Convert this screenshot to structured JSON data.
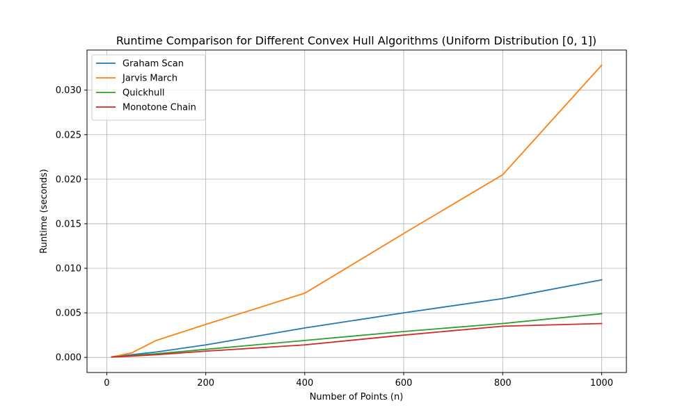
{
  "chart_data": {
    "type": "line",
    "title": "Runtime Comparison for Different Convex Hull Algorithms (Uniform Distribution [0, 1])",
    "xlabel": "Number of Points (n)",
    "ylabel": "Runtime (seconds)",
    "xlim": [
      -40,
      1050
    ],
    "ylim": [
      -0.0017,
      0.0345
    ],
    "x_ticks": [
      0,
      200,
      400,
      600,
      800,
      1000
    ],
    "x_tick_labels": [
      "0",
      "200",
      "400",
      "600",
      "800",
      "1000"
    ],
    "y_ticks": [
      0.0,
      0.005,
      0.01,
      0.015,
      0.02,
      0.025,
      0.03
    ],
    "y_tick_labels": [
      "0.000",
      "0.005",
      "0.010",
      "0.015",
      "0.020",
      "0.025",
      "0.030"
    ],
    "grid": true,
    "legend_position": "top-left",
    "x": [
      10,
      50,
      100,
      200,
      400,
      600,
      800,
      1000
    ],
    "series": [
      {
        "name": "Graham Scan",
        "color": "#1f77b4",
        "values": [
          5e-05,
          0.0003,
          0.0006,
          0.0014,
          0.0033,
          0.005,
          0.0066,
          0.0087
        ]
      },
      {
        "name": "Jarvis March",
        "color": "#ff7f0e",
        "values": [
          5e-05,
          0.0005,
          0.0019,
          0.0037,
          0.0072,
          0.0139,
          0.0205,
          0.0328
        ]
      },
      {
        "name": "Quickhull",
        "color": "#2ca02c",
        "values": [
          5e-05,
          0.0002,
          0.0004,
          0.0009,
          0.0019,
          0.0029,
          0.0038,
          0.0049
        ]
      },
      {
        "name": "Monotone Chain",
        "color": "#d62728",
        "values": [
          3e-05,
          0.00015,
          0.0003,
          0.0007,
          0.0014,
          0.0025,
          0.0035,
          0.0038
        ]
      }
    ]
  }
}
